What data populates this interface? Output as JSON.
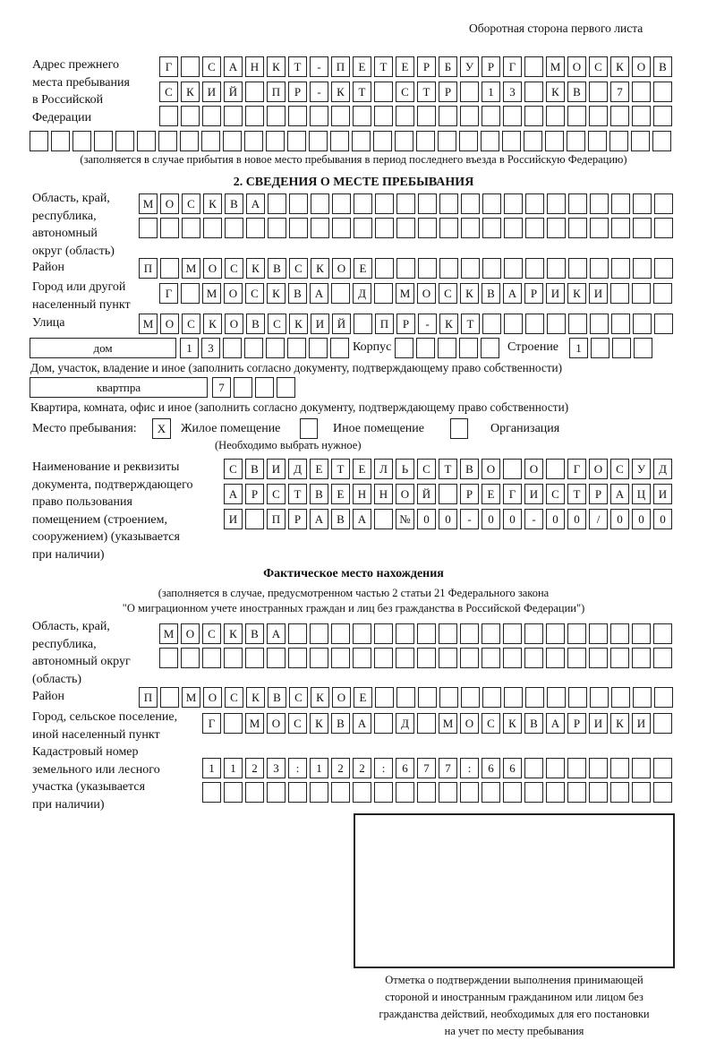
{
  "header": {
    "side_note": "Оборотная сторона первого листа"
  },
  "previous_address": {
    "label": [
      "Адрес прежнего",
      "места пребывания",
      "в Российской",
      "Федерации"
    ],
    "rows": [
      [
        "Г",
        "",
        "С",
        "А",
        "Н",
        "К",
        "Т",
        "-",
        "П",
        "Е",
        "Т",
        "Е",
        "Р",
        "Б",
        "У",
        "Р",
        "Г",
        "",
        "М",
        "О",
        "С",
        "К",
        "О",
        "В"
      ],
      [
        "С",
        "К",
        "И",
        "Й",
        "",
        "П",
        "Р",
        "-",
        "К",
        "Т",
        "",
        "С",
        "Т",
        "Р",
        "",
        "1",
        "3",
        "",
        "К",
        "В",
        "",
        "7",
        "",
        ""
      ],
      [
        "",
        "",
        "",
        "",
        "",
        "",
        "",
        "",
        "",
        "",
        "",
        "",
        "",
        "",
        "",
        "",
        "",
        "",
        "",
        "",
        "",
        "",
        "",
        ""
      ],
      [
        "",
        "",
        "",
        "",
        "",
        "",
        "",
        "",
        "",
        "",
        "",
        "",
        "",
        "",
        "",
        "",
        "",
        "",
        "",
        "",
        "",
        "",
        "",
        "",
        "",
        "",
        "",
        "",
        "",
        ""
      ]
    ],
    "note": "(заполняется в случае прибытия в новое место пребывания в период последнего въезда в Российскую Федерацию)"
  },
  "section2": {
    "title": "2. СВЕДЕНИЯ О МЕСТЕ ПРЕБЫВАНИЯ",
    "region_label": [
      "Область, край,",
      "республика,",
      "автономный",
      "округ (область)"
    ],
    "region_rows": [
      [
        "М",
        "О",
        "С",
        "К",
        "В",
        "А",
        "",
        "",
        "",
        "",
        "",
        "",
        "",
        "",
        "",
        "",
        "",
        "",
        "",
        "",
        "",
        "",
        "",
        "",
        ""
      ],
      [
        "",
        "",
        "",
        "",
        "",
        "",
        "",
        "",
        "",
        "",
        "",
        "",
        "",
        "",
        "",
        "",
        "",
        "",
        "",
        "",
        "",
        "",
        "",
        "",
        ""
      ]
    ],
    "district_label": "Район",
    "district_row": [
      "П",
      "",
      "М",
      "О",
      "С",
      "К",
      "В",
      "С",
      "К",
      "О",
      "Е",
      "",
      "",
      "",
      "",
      "",
      "",
      "",
      "",
      "",
      "",
      "",
      "",
      "",
      ""
    ],
    "city_label": [
      "Город или другой",
      "населенный пункт"
    ],
    "city_row": [
      "Г",
      "",
      "М",
      "О",
      "С",
      "К",
      "В",
      "А",
      "",
      "Д",
      "",
      "М",
      "О",
      "С",
      "К",
      "В",
      "А",
      "Р",
      "И",
      "К",
      "И",
      "",
      "",
      ""
    ],
    "street_label": "Улица",
    "street_row": [
      "М",
      "О",
      "С",
      "К",
      "О",
      "В",
      "С",
      "К",
      "И",
      "Й",
      "",
      "П",
      "Р",
      "-",
      "К",
      "Т",
      "",
      "",
      "",
      "",
      "",
      "",
      "",
      "",
      ""
    ],
    "house_type": "дом",
    "house_cells": [
      "1",
      "3",
      "",
      "",
      "",
      "",
      "",
      ""
    ],
    "korpus_label": "Корпус",
    "korpus_cells": [
      "",
      "",
      "",
      "",
      ""
    ],
    "building_label": "Строение",
    "building_cells": [
      "1",
      "",
      "",
      ""
    ],
    "house_note": "Дом, участок, владение и иное (заполнить согласно документу, подтверждающему право собственности)",
    "apartment_type": "квартпра",
    "apartment_cells": [
      "7",
      "",
      "",
      ""
    ],
    "apartment_note": "Квартира, комната, офис и иное (заполнить согласно документу, подтверждающему право собственности)",
    "stay_place_label": "Место пребывания:",
    "stay_options": [
      {
        "label": "Жилое помещение",
        "mark": "X"
      },
      {
        "label": "Иное помещение",
        "mark": ""
      },
      {
        "label": "Организация",
        "mark": ""
      }
    ],
    "stay_note": "(Необходимо выбрать нужное)",
    "document_label": [
      "Наименование и реквизиты",
      "документа, подтверждающего",
      "право пользования",
      "помещением (строением,",
      "сооружением) (указывается",
      "при наличии)"
    ],
    "document_rows": [
      [
        "С",
        "В",
        "И",
        "Д",
        "Е",
        "Т",
        "Е",
        "Л",
        "Ь",
        "С",
        "Т",
        "В",
        "О",
        "",
        "О",
        "",
        "Г",
        "О",
        "С",
        "У",
        "Д"
      ],
      [
        "А",
        "Р",
        "С",
        "Т",
        "В",
        "Е",
        "Н",
        "Н",
        "О",
        "Й",
        "",
        "Р",
        "Е",
        "Г",
        "И",
        "С",
        "Т",
        "Р",
        "А",
        "Ц",
        "И"
      ],
      [
        "И",
        "",
        "П",
        "Р",
        "А",
        "В",
        "А",
        "",
        "№",
        "0",
        "0",
        "-",
        "0",
        "0",
        "-",
        "0",
        "0",
        "/",
        "0",
        "0",
        "0"
      ]
    ]
  },
  "actual": {
    "title": "Фактическое место нахождения",
    "subtitle": [
      "(заполняется в случае, предусмотренном частью 2 статьи 21 Федерального закона",
      "\"О миграционном учете иностранных граждан и лиц без гражданства в Российской Федерации\")"
    ],
    "region_label": [
      "Область, край,",
      "республика,",
      "автономный округ",
      "(область)"
    ],
    "region_rows": [
      [
        "М",
        "О",
        "С",
        "К",
        "В",
        "А",
        "",
        "",
        "",
        "",
        "",
        "",
        "",
        "",
        "",
        "",
        "",
        "",
        "",
        "",
        "",
        "",
        "",
        ""
      ],
      [
        "",
        "",
        "",
        "",
        "",
        "",
        "",
        "",
        "",
        "",
        "",
        "",
        "",
        "",
        "",
        "",
        "",
        "",
        "",
        "",
        "",
        "",
        "",
        ""
      ]
    ],
    "district_label": "Район",
    "district_row": [
      "П",
      "",
      "М",
      "О",
      "С",
      "К",
      "В",
      "С",
      "К",
      "О",
      "Е",
      "",
      "",
      "",
      "",
      "",
      "",
      "",
      "",
      "",
      "",
      "",
      "",
      "",
      ""
    ],
    "city_label": [
      "Город, сельское поселение,",
      "иной населенный пункт"
    ],
    "city_row": [
      "Г",
      "",
      "М",
      "О",
      "С",
      "К",
      "В",
      "А",
      "",
      "Д",
      "",
      "М",
      "О",
      "С",
      "К",
      "В",
      "А",
      "Р",
      "И",
      "К",
      "И",
      ""
    ],
    "cadastral_label": [
      "Кадастровый номер",
      "земельного или лесного",
      "участка (указывается",
      "при наличии)"
    ],
    "cadastral_rows": [
      [
        "1",
        "1",
        "2",
        "3",
        ":",
        "1",
        "2",
        "2",
        ":",
        "6",
        "7",
        "7",
        ":",
        "6",
        "6",
        "",
        "",
        "",
        "",
        "",
        "",
        ""
      ],
      [
        "",
        "",
        "",
        "",
        "",
        "",
        "",
        "",
        "",
        "",
        "",
        "",
        "",
        "",
        "",
        "",
        "",
        "",
        "",
        "",
        "",
        ""
      ]
    ],
    "stamp_caption": [
      "Отметка о подтверждении выполнения принимающей",
      "стороной и иностранным гражданином или лицом без",
      "гражданства действий, необходимых для его постановки",
      "на учет по месту пребывания"
    ]
  }
}
